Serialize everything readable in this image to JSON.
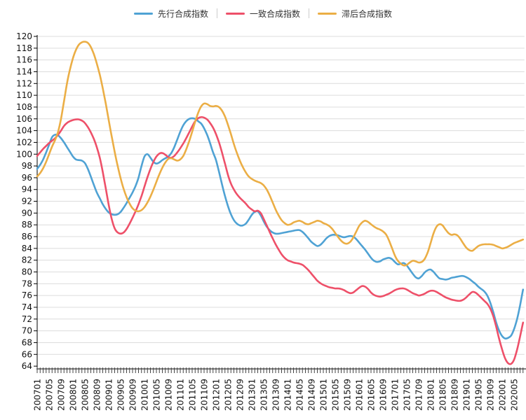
{
  "legend": {
    "items": [
      {
        "label": "先行合成指数",
        "color": "#4FA2D4"
      },
      {
        "label": "一致合成指数",
        "color": "#EE5069"
      },
      {
        "label": "滞后合成指数",
        "color": "#EBAE45"
      }
    ]
  },
  "chart_data": {
    "type": "line",
    "title": "",
    "xlabel": "",
    "ylabel": "",
    "x_start": "200701",
    "x_end": "202008",
    "x_frequency": "monthly",
    "grid": true,
    "legend_position": "top",
    "ylim": [
      64,
      120
    ],
    "y_ticks": [
      64,
      66,
      68,
      70,
      72,
      74,
      76,
      78,
      80,
      82,
      84,
      86,
      88,
      90,
      92,
      94,
      96,
      98,
      100,
      102,
      104,
      106,
      108,
      110,
      112,
      114,
      116,
      118,
      120
    ],
    "x_tick_labels": [
      "200701",
      "200705",
      "200709",
      "200801",
      "200805",
      "200809",
      "200901",
      "200905",
      "200909",
      "201001",
      "201005",
      "201009",
      "201101",
      "201105",
      "201109",
      "201201",
      "201205",
      "201209",
      "201301",
      "201305",
      "201309",
      "201401",
      "201405",
      "201409",
      "201501",
      "201505",
      "201509",
      "201601",
      "201605",
      "201609",
      "201701",
      "201705",
      "201709",
      "201801",
      "201805",
      "201809",
      "201901",
      "201905",
      "201909",
      "202001",
      "202005"
    ],
    "axis_color": "#000000",
    "grid_color": "#dcdcdc",
    "tick_color": "#444444",
    "series": [
      {
        "name": "先行合成指数",
        "color": "#4FA2D4",
        "values": [
          97.5,
          98.2,
          99.1,
          100.3,
          101.6,
          102.9,
          103.3,
          103.2,
          102.7,
          102.0,
          101.2,
          100.4,
          99.6,
          99.1,
          99.0,
          98.9,
          98.5,
          97.5,
          96.2,
          94.8,
          93.5,
          92.5,
          91.5,
          90.7,
          90.1,
          89.8,
          89.7,
          89.8,
          90.2,
          90.9,
          91.7,
          92.6,
          93.5,
          94.6,
          96.0,
          98.0,
          99.6,
          100.0,
          99.4,
          98.7,
          98.4,
          98.6,
          99.0,
          99.3,
          99.6,
          100.2,
          101.2,
          102.5,
          103.8,
          104.9,
          105.6,
          106.0,
          106.1,
          106.0,
          105.6,
          105.2,
          104.4,
          103.3,
          101.9,
          100.3,
          99.0,
          97.0,
          94.9,
          92.9,
          91.2,
          89.8,
          88.8,
          88.2,
          87.9,
          87.9,
          88.2,
          88.9,
          89.7,
          90.2,
          90.3,
          89.6,
          88.6,
          87.7,
          87.1,
          86.7,
          86.5,
          86.5,
          86.6,
          86.7,
          86.8,
          86.9,
          87.0,
          87.1,
          87.1,
          86.8,
          86.3,
          85.7,
          85.1,
          84.7,
          84.4,
          84.6,
          85.1,
          85.7,
          86.1,
          86.3,
          86.3,
          86.2,
          86.0,
          85.9,
          86.0,
          86.1,
          86.0,
          85.6,
          85.0,
          84.4,
          83.8,
          83.1,
          82.4,
          81.9,
          81.7,
          81.8,
          82.1,
          82.3,
          82.4,
          82.2,
          81.7,
          81.3,
          81.4,
          81.5,
          81.1,
          80.4,
          79.7,
          79.1,
          78.9,
          79.3,
          79.9,
          80.3,
          80.4,
          80.0,
          79.4,
          78.9,
          78.8,
          78.7,
          78.8,
          79.0,
          79.1,
          79.2,
          79.3,
          79.3,
          79.1,
          78.8,
          78.4,
          78.0,
          77.5,
          77.1,
          76.7,
          76.0,
          74.8,
          73.2,
          71.4,
          70.0,
          69.1,
          68.7,
          68.8,
          69.2,
          70.3,
          72.0,
          74.3,
          77.0
        ]
      },
      {
        "name": "一致合成指数",
        "color": "#EE5069",
        "values": [
          99.7,
          100.3,
          100.9,
          101.4,
          101.9,
          102.3,
          102.7,
          103.3,
          104.0,
          104.8,
          105.3,
          105.6,
          105.8,
          105.9,
          105.9,
          105.7,
          105.3,
          104.6,
          103.7,
          102.6,
          101.2,
          99.4,
          97.0,
          94.2,
          91.4,
          89.0,
          87.4,
          86.7,
          86.5,
          86.7,
          87.3,
          88.2,
          89.2,
          90.3,
          91.5,
          92.9,
          94.5,
          96.1,
          97.5,
          98.7,
          99.6,
          100.1,
          100.2,
          99.9,
          99.5,
          99.4,
          99.7,
          100.3,
          101.0,
          101.8,
          102.7,
          103.7,
          104.7,
          105.6,
          106.1,
          106.3,
          106.2,
          105.9,
          105.3,
          104.5,
          103.4,
          102.0,
          100.3,
          98.4,
          96.5,
          95.0,
          94.0,
          93.2,
          92.6,
          92.1,
          91.6,
          91.0,
          90.6,
          90.3,
          90.4,
          90.0,
          89.0,
          87.9,
          86.8,
          85.7,
          84.7,
          83.8,
          83.0,
          82.4,
          82.0,
          81.8,
          81.6,
          81.5,
          81.4,
          81.2,
          80.8,
          80.3,
          79.7,
          79.1,
          78.5,
          78.1,
          77.8,
          77.6,
          77.4,
          77.3,
          77.2,
          77.2,
          77.1,
          76.9,
          76.6,
          76.4,
          76.5,
          76.9,
          77.3,
          77.6,
          77.5,
          77.1,
          76.5,
          76.1,
          75.9,
          75.8,
          75.9,
          76.1,
          76.3,
          76.6,
          76.9,
          77.1,
          77.2,
          77.2,
          77.0,
          76.7,
          76.4,
          76.2,
          76.0,
          76.1,
          76.3,
          76.6,
          76.8,
          76.8,
          76.6,
          76.3,
          76.0,
          75.7,
          75.5,
          75.3,
          75.2,
          75.1,
          75.1,
          75.3,
          75.7,
          76.2,
          76.6,
          76.5,
          76.1,
          75.6,
          75.1,
          74.6,
          73.8,
          72.5,
          70.7,
          68.6,
          66.8,
          65.3,
          64.5,
          64.4,
          65.1,
          66.8,
          69.0,
          71.4
        ]
      },
      {
        "name": "滞后合成指数",
        "color": "#EBAE45",
        "values": [
          96.2,
          96.8,
          97.6,
          98.7,
          100.0,
          101.3,
          102.4,
          103.8,
          106.0,
          109.0,
          112.0,
          114.4,
          116.3,
          117.7,
          118.6,
          119.0,
          119.1,
          118.9,
          118.2,
          117.0,
          115.4,
          113.5,
          111.2,
          108.6,
          105.8,
          103.0,
          100.4,
          98.0,
          95.9,
          94.1,
          92.7,
          91.6,
          90.8,
          90.4,
          90.3,
          90.5,
          91.0,
          91.8,
          92.8,
          94.0,
          95.3,
          96.6,
          97.7,
          98.6,
          99.2,
          99.3,
          99.1,
          98.9,
          99.1,
          99.7,
          100.8,
          102.2,
          103.8,
          105.5,
          107.0,
          108.1,
          108.6,
          108.5,
          108.2,
          108.1,
          108.2,
          108.0,
          107.4,
          106.4,
          105.0,
          103.4,
          101.7,
          100.2,
          98.9,
          97.8,
          96.9,
          96.2,
          95.8,
          95.5,
          95.3,
          95.1,
          94.7,
          94.0,
          93.0,
          91.8,
          90.6,
          89.6,
          88.8,
          88.3,
          88.0,
          88.1,
          88.4,
          88.6,
          88.7,
          88.5,
          88.2,
          88.1,
          88.3,
          88.5,
          88.7,
          88.6,
          88.3,
          88.1,
          87.8,
          87.3,
          86.6,
          85.9,
          85.3,
          84.9,
          84.8,
          85.1,
          85.8,
          86.8,
          87.8,
          88.4,
          88.7,
          88.5,
          88.1,
          87.7,
          87.4,
          87.2,
          86.9,
          86.4,
          85.4,
          84.1,
          82.8,
          81.9,
          81.4,
          81.1,
          81.2,
          81.6,
          81.9,
          81.8,
          81.6,
          81.7,
          82.2,
          83.3,
          84.9,
          86.6,
          87.7,
          88.1,
          87.9,
          87.2,
          86.6,
          86.3,
          86.4,
          86.2,
          85.6,
          84.8,
          84.1,
          83.7,
          83.6,
          84.0,
          84.4,
          84.6,
          84.7,
          84.7,
          84.7,
          84.6,
          84.4,
          84.2,
          84.0,
          84.1,
          84.3,
          84.6,
          84.9,
          85.1,
          85.3,
          85.5
        ]
      }
    ]
  }
}
